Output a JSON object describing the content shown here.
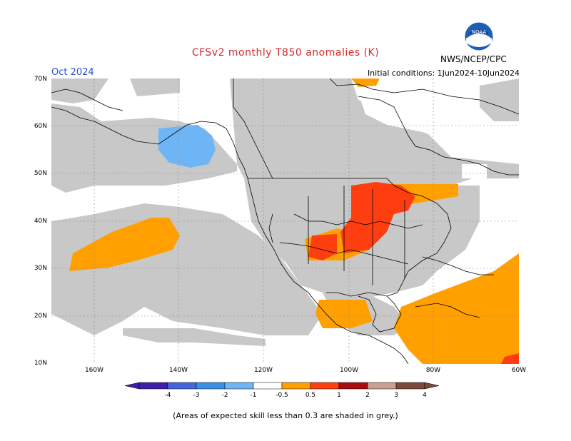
{
  "title": "CFSv2 monthly T850 anomalies (K)",
  "month": "Oct 2024",
  "agency": "NWS/NCEP/CPC",
  "logo_text": "NOAA",
  "initial_conditions": "Initial conditions: 1Jun2024-10Jun2024",
  "footnote": "(Areas of expected skill less than 0.3 are shaded in grey.)",
  "lat_labels": [
    "70N",
    "60N",
    "50N",
    "40N",
    "30N",
    "20N",
    "10N"
  ],
  "lon_labels": [
    "160W",
    "140W",
    "120W",
    "100W",
    "80W",
    "60W"
  ],
  "colorbar": {
    "ticks": [
      "-4",
      "-3",
      "-2",
      "-1",
      "-0.5",
      "0.5",
      "1",
      "2",
      "3",
      "4"
    ],
    "colors": [
      "#3f1fa8",
      "#4466dd",
      "#3c8fe8",
      "#6eb5f5",
      "#ffffff",
      "#ffa000",
      "#ff3e10",
      "#a80c0c",
      "#caa090",
      "#7a4a3a"
    ]
  },
  "colors": {
    "skill_grey": "#c8c8c8",
    "orange": "#ffa000",
    "red": "#ff3e10",
    "light_blue": "#6eb5f5",
    "title_red": "#d42a2a",
    "month_blue": "#2b4fd0"
  }
}
